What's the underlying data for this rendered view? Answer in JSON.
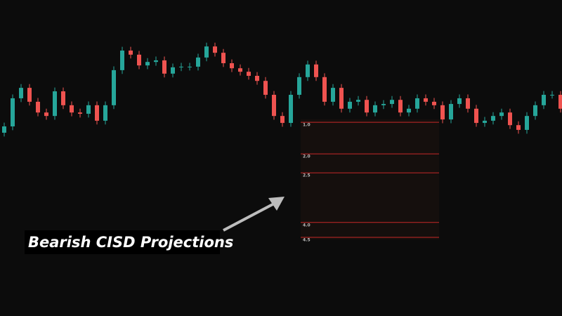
{
  "chart_data": {
    "type": "candlestick",
    "ylim": [
      0,
      100
    ],
    "up_color": "#26a69a",
    "down_color": "#ef5350",
    "open": [
      58.0,
      60.0,
      68.9,
      72.2,
      67.8,
      64.4,
      63.3,
      71.1,
      66.7,
      64.4,
      64.0,
      66.7,
      61.8,
      66.7,
      77.8,
      84.0,
      82.7,
      79.3,
      80.4,
      80.9,
      76.7,
      78.7,
      78.9,
      78.9,
      81.8,
      85.3,
      83.3,
      80.0,
      78.4,
      77.3,
      76.0,
      74.4,
      70.0,
      63.3,
      61.1,
      70.0,
      75.6,
      79.6,
      75.6,
      67.8,
      72.2,
      65.6,
      67.8,
      68.4,
      64.4,
      66.7,
      67.1,
      68.4,
      64.4,
      65.6,
      68.9,
      67.8,
      66.7,
      62.2,
      67.1,
      68.9,
      65.6,
      61.1,
      61.8,
      63.3,
      64.4,
      60.4,
      58.9,
      63.3,
      66.7,
      70.0,
      70.0
    ],
    "high": [
      61.2,
      70.1,
      73.4,
      73.4,
      69.0,
      65.6,
      72.3,
      72.3,
      67.9,
      65.6,
      67.9,
      67.9,
      67.9,
      79.0,
      85.2,
      85.2,
      83.9,
      81.6,
      82.1,
      82.1,
      79.9,
      80.1,
      80.1,
      83.0,
      86.5,
      86.5,
      84.5,
      81.2,
      79.6,
      78.5,
      77.2,
      75.6,
      71.2,
      64.5,
      71.2,
      76.8,
      80.8,
      80.8,
      76.8,
      73.4,
      73.4,
      69.0,
      69.6,
      69.6,
      67.9,
      68.3,
      69.6,
      69.6,
      66.8,
      70.1,
      70.1,
      69.0,
      67.9,
      68.3,
      70.1,
      70.1,
      66.8,
      63.0,
      64.5,
      65.6,
      65.6,
      61.6,
      64.5,
      67.9,
      71.2,
      71.2,
      71.2
    ],
    "low": [
      56.8,
      58.8,
      67.7,
      66.6,
      63.2,
      62.1,
      62.1,
      65.5,
      63.2,
      62.8,
      62.8,
      60.6,
      60.6,
      65.5,
      76.6,
      81.5,
      78.1,
      78.1,
      79.2,
      75.5,
      75.5,
      77.5,
      77.7,
      77.7,
      80.6,
      82.1,
      78.8,
      77.2,
      76.1,
      74.8,
      73.2,
      68.8,
      62.1,
      59.9,
      59.9,
      68.8,
      74.4,
      74.4,
      66.6,
      66.6,
      64.4,
      64.4,
      66.6,
      63.2,
      63.2,
      65.5,
      65.9,
      63.2,
      63.2,
      64.4,
      66.6,
      65.5,
      61.0,
      61.0,
      65.9,
      64.4,
      59.9,
      59.9,
      60.6,
      62.1,
      59.2,
      57.7,
      57.7,
      62.1,
      65.5,
      68.8,
      64.4
    ],
    "close": [
      60.0,
      68.9,
      72.2,
      67.8,
      64.4,
      63.3,
      71.1,
      66.7,
      64.4,
      64.0,
      66.7,
      61.8,
      66.7,
      77.8,
      84.0,
      82.7,
      79.3,
      80.4,
      80.9,
      76.7,
      78.7,
      78.9,
      78.9,
      81.8,
      85.3,
      83.3,
      80.0,
      78.4,
      77.3,
      76.0,
      74.4,
      70.0,
      63.3,
      61.1,
      70.0,
      75.6,
      79.6,
      75.6,
      67.8,
      72.2,
      65.6,
      67.8,
      68.4,
      64.4,
      66.7,
      67.1,
      68.4,
      64.4,
      65.6,
      68.9,
      67.8,
      66.7,
      62.2,
      67.1,
      68.9,
      65.6,
      61.1,
      61.8,
      63.3,
      64.4,
      60.4,
      58.9,
      63.3,
      66.7,
      70.0,
      70.0,
      65.6
    ],
    "levels": [
      {
        "value": 61.3,
        "label": "1.0"
      },
      {
        "value": 51.3,
        "label": "2.0"
      },
      {
        "value": 45.3,
        "label": "2.5"
      },
      {
        "value": 29.6,
        "label": "4.0"
      },
      {
        "value": 24.9,
        "label": "4.5"
      }
    ],
    "level_color": "#c62828",
    "annotation": "Bearish CISD Projections"
  }
}
